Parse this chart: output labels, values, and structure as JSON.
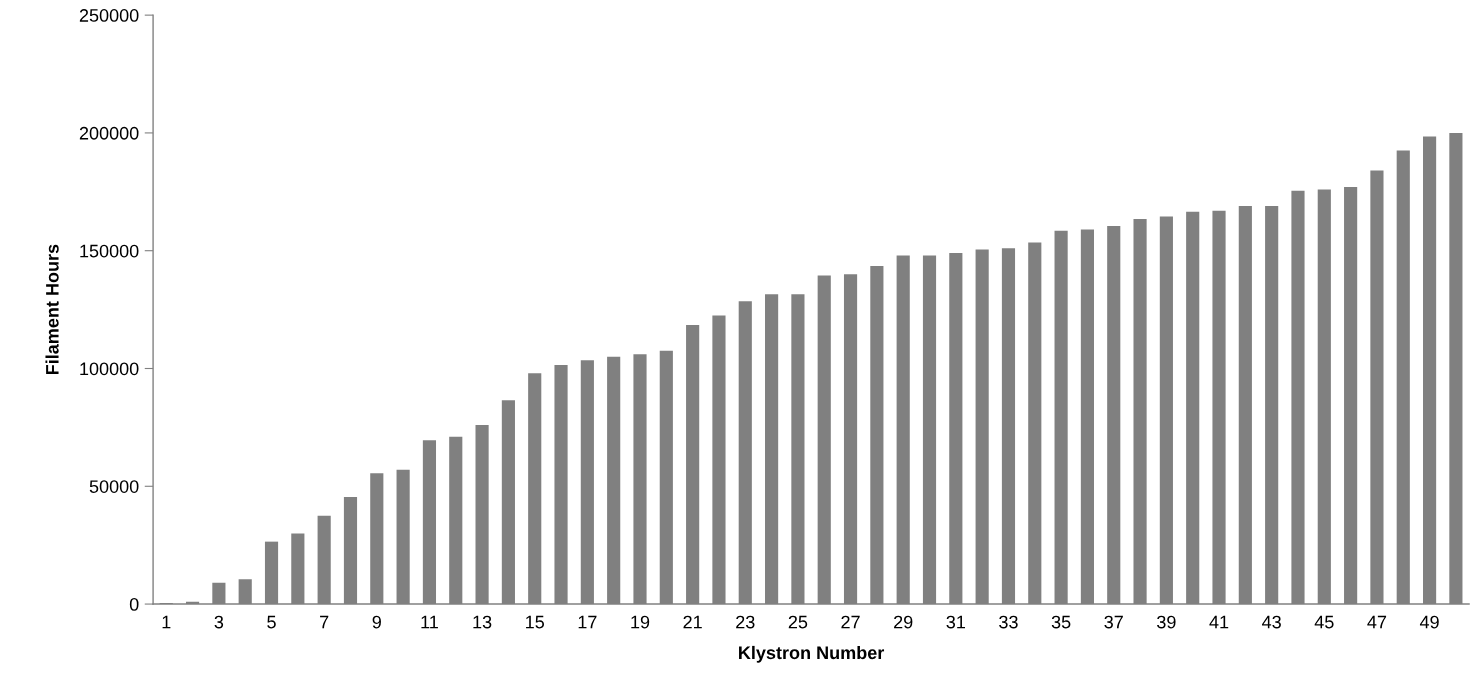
{
  "chart_data": {
    "type": "bar",
    "xlabel": "Klystron Number",
    "ylabel": "Filament Hours",
    "categories": [
      "1",
      null,
      "3",
      null,
      "5",
      null,
      "7",
      null,
      "9",
      null,
      "11",
      null,
      "13",
      null,
      "15",
      null,
      "17",
      null,
      "19",
      null,
      "21",
      null,
      "23",
      null,
      "25",
      null,
      "27",
      null,
      "29",
      null,
      "31",
      null,
      "33",
      null,
      "35",
      null,
      "37",
      null,
      "39",
      null,
      "41",
      null,
      "43",
      null,
      "45",
      null,
      "47",
      null,
      "49",
      null
    ],
    "values": [
      500,
      1000,
      9000,
      10500,
      26500,
      30000,
      37500,
      45500,
      55500,
      57000,
      69500,
      71000,
      76000,
      86500,
      98000,
      101500,
      103500,
      105000,
      106000,
      107500,
      118500,
      122500,
      128500,
      131500,
      131500,
      139500,
      140000,
      143500,
      148000,
      148000,
      149000,
      150500,
      151000,
      153500,
      158500,
      159000,
      160500,
      163500,
      164500,
      166500,
      167000,
      169000,
      169000,
      175500,
      176000,
      177000,
      184000,
      192500,
      198500,
      200000
    ],
    "color": "#808080",
    "ylim": [
      0,
      250000
    ],
    "yticks": [
      0,
      50000,
      100000,
      150000,
      200000,
      250000
    ],
    "grid": false
  }
}
